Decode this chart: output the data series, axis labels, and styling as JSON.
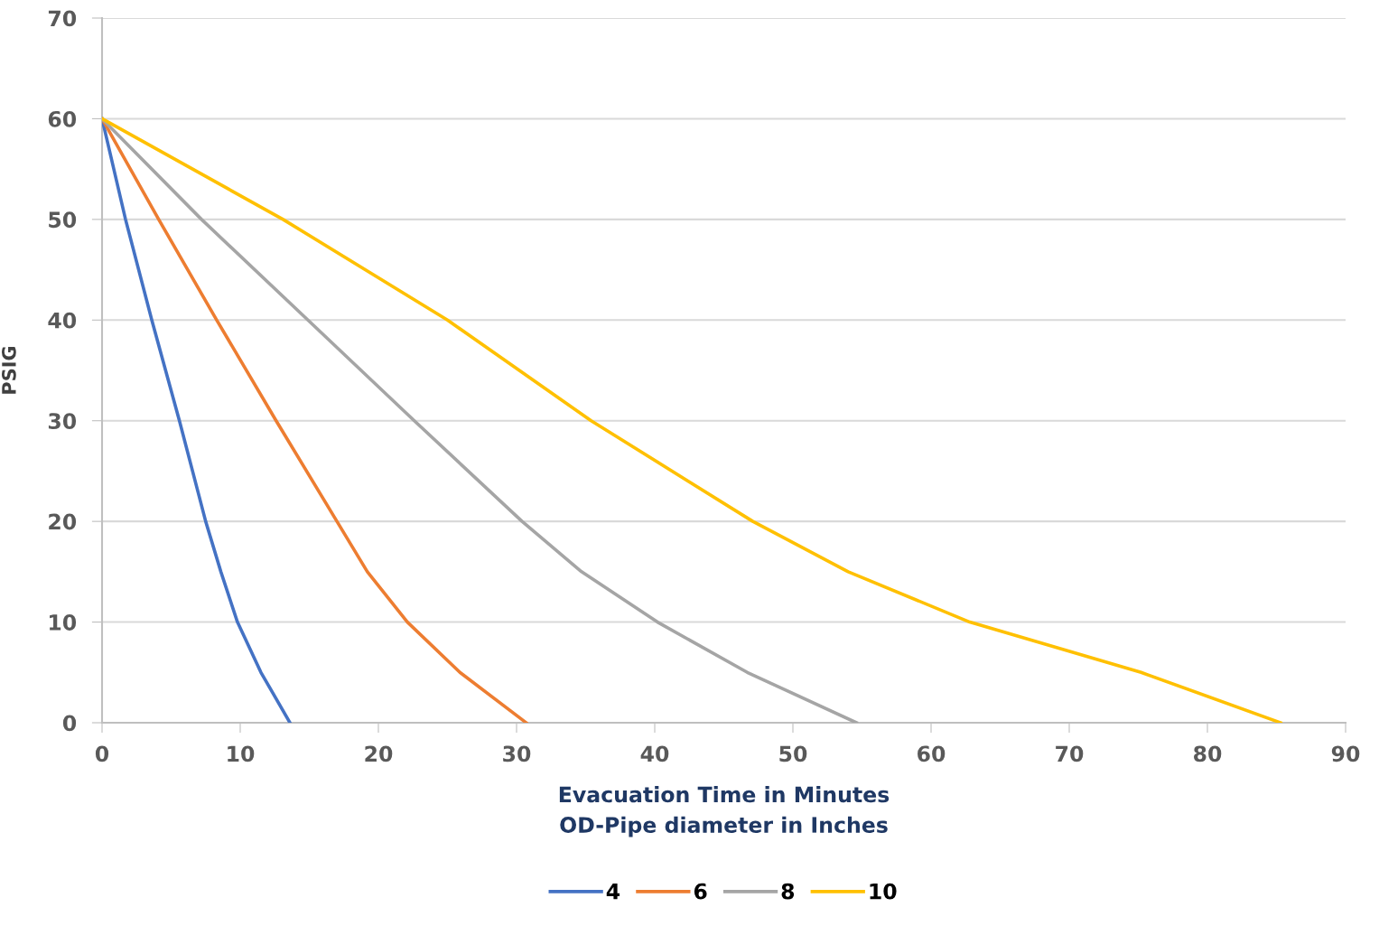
{
  "chart_data": {
    "type": "line",
    "xlabel": "Evacuation Time in Minutes\nOD-Pipe diameter in Inches",
    "ylabel": "PSIG",
    "series": [
      {
        "name": "4",
        "color": "#4472c4",
        "x": [
          0,
          1.7,
          3.6,
          5.6,
          7.5,
          8.6,
          9.8,
          11.5,
          13.6
        ],
        "values": [
          60,
          50,
          40,
          30,
          20,
          15,
          10,
          5,
          0
        ]
      },
      {
        "name": "6",
        "color": "#ed7d31",
        "x": [
          0,
          4.1,
          8.3,
          12.6,
          17.0,
          19.2,
          22.1,
          25.9,
          30.7
        ],
        "values": [
          60,
          50,
          40,
          30,
          20,
          15,
          10,
          5,
          0
        ]
      },
      {
        "name": "8",
        "color": "#a5a5a5",
        "x": [
          0,
          7.2,
          14.9,
          22.6,
          30.4,
          34.7,
          40.2,
          46.7,
          54.6
        ],
        "values": [
          60,
          50,
          40,
          30,
          20,
          15,
          10,
          5,
          0
        ]
      },
      {
        "name": "10",
        "color": "#ffc000",
        "x": [
          0,
          13.1,
          25.0,
          35.4,
          47.1,
          54.0,
          62.8,
          75.2,
          85.3
        ],
        "values": [
          60,
          50,
          40,
          30,
          20,
          15,
          10,
          5,
          0
        ]
      }
    ],
    "xlim": [
      0,
      90
    ],
    "xticks": [
      0,
      10,
      20,
      30,
      40,
      50,
      60,
      70,
      80,
      90
    ],
    "ylim": [
      0,
      70
    ],
    "yticks": [
      0,
      10,
      20,
      30,
      40,
      50,
      60,
      70
    ],
    "grid": "y",
    "legend": "bottom",
    "marker": "none",
    "line_style": "solid"
  }
}
